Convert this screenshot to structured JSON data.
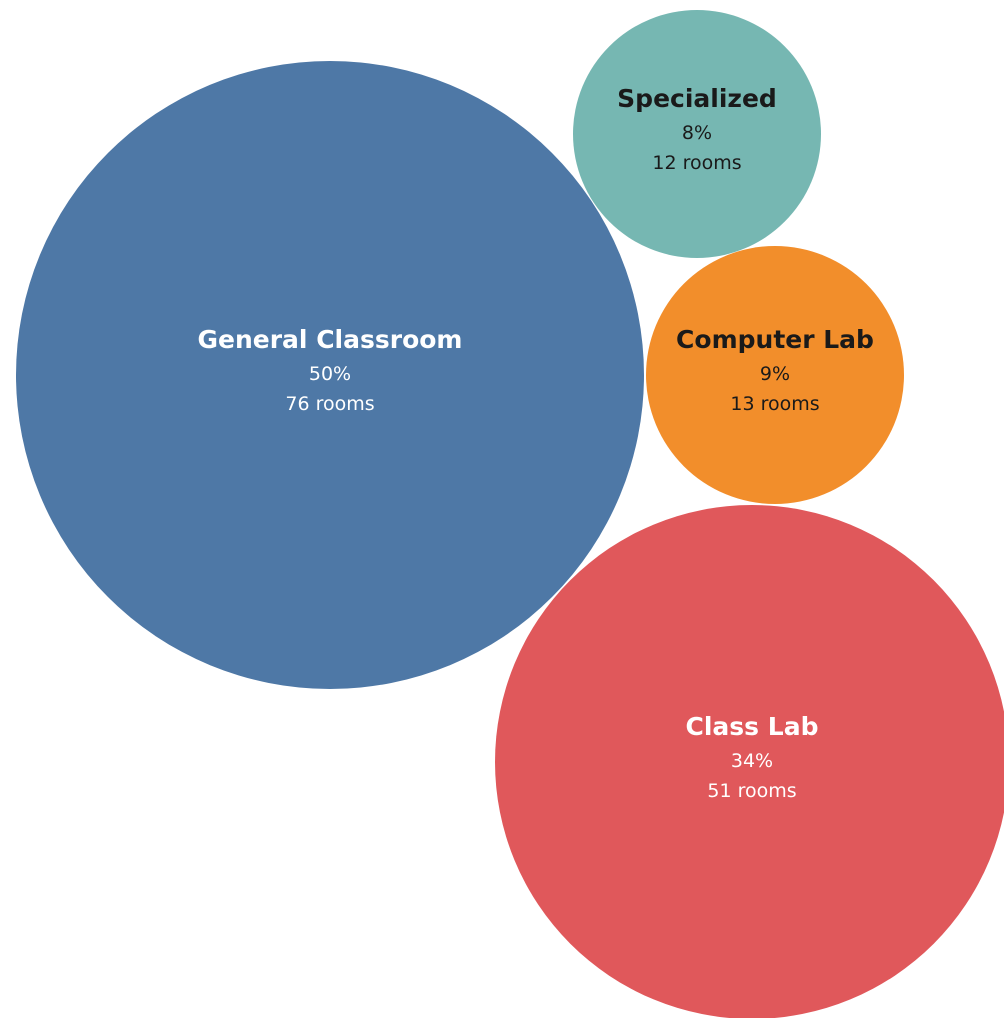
{
  "chart_data": {
    "type": "bubble",
    "title": "",
    "unit": "rooms",
    "series": [
      {
        "name": "General Classroom",
        "percent_label": "50%",
        "count_label": "76 rooms",
        "value": 76,
        "percent": 50,
        "color": "#4e78a6",
        "text_color": "#ffffff"
      },
      {
        "name": "Class Lab",
        "percent_label": "34%",
        "count_label": "51 rooms",
        "value": 51,
        "percent": 34,
        "color": "#e0585b",
        "text_color": "#ffffff"
      },
      {
        "name": "Computer Lab",
        "percent_label": "9%",
        "count_label": "13 rooms",
        "value": 13,
        "percent": 9,
        "color": "#f28e2b",
        "text_color": "#1a1a1a"
      },
      {
        "name": "Specialized",
        "percent_label": "8%",
        "count_label": "12 rooms",
        "value": 12,
        "percent": 8,
        "color": "#76b7b2",
        "text_color": "#1a1a1a"
      }
    ]
  }
}
